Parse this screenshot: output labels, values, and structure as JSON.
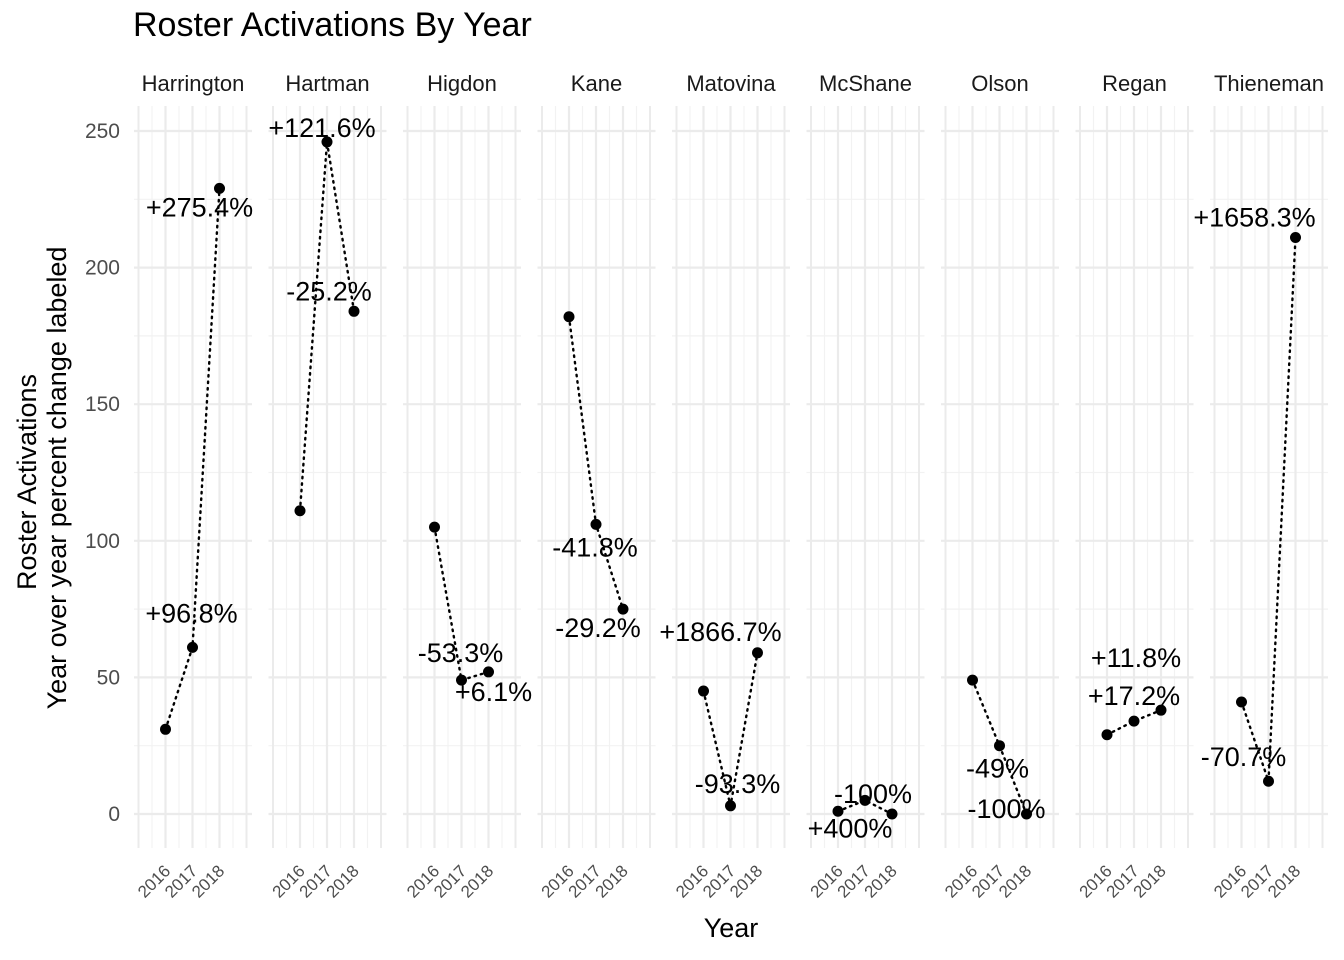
{
  "chart_data": {
    "type": "line",
    "title": "Roster Activations By Year",
    "xlabel": "Year",
    "ylabel_lines": [
      "Roster Activations",
      "Year over year percent change labeled"
    ],
    "x": [
      "2016",
      "2017",
      "2018"
    ],
    "y_ticks": [
      0,
      50,
      100,
      150,
      200,
      250
    ],
    "ylim": [
      -12,
      262
    ],
    "grid": true,
    "line_style": "dotted",
    "panels": [
      {
        "name": "Harrington",
        "values": [
          31,
          61,
          229
        ],
        "labels": [
          "",
          "+96.8%",
          "+275.4%"
        ]
      },
      {
        "name": "Hartman",
        "values": [
          111,
          246,
          184
        ],
        "labels": [
          "",
          "+121.6%",
          "-25.2%"
        ]
      },
      {
        "name": "Higdon",
        "values": [
          105,
          49,
          52
        ],
        "labels": [
          "",
          "-53.3%",
          "+6.1%"
        ]
      },
      {
        "name": "Kane",
        "values": [
          182,
          106,
          75
        ],
        "labels": [
          "",
          "-41.8%",
          "-29.2%"
        ]
      },
      {
        "name": "Matovina",
        "values": [
          45,
          3,
          59
        ],
        "labels": [
          "",
          "-93.3%",
          "+1866.7%"
        ]
      },
      {
        "name": "McShane",
        "values": [
          1,
          5,
          0
        ],
        "labels": [
          "",
          "+400%",
          "-100%"
        ]
      },
      {
        "name": "Olson",
        "values": [
          49,
          25,
          0
        ],
        "labels": [
          "",
          "-49%",
          "-100%"
        ]
      },
      {
        "name": "Regan",
        "values": [
          29,
          34,
          38
        ],
        "labels": [
          "",
          "+17.2%",
          "+11.8%"
        ]
      },
      {
        "name": "Thieneman",
        "values": [
          41,
          12,
          211
        ],
        "labels": [
          "",
          "-70.7%",
          "+1658.3%"
        ]
      }
    ]
  }
}
